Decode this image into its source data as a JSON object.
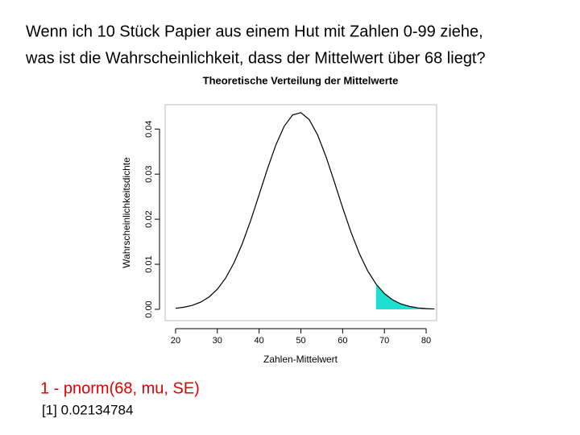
{
  "heading": [
    "Wenn ich 10 Stück Papier aus einem Hut mit Zahlen 0-99 ziehe,",
    "was ist die Wahrscheinlichkeit, dass der Mittelwert über 68 liegt?"
  ],
  "chart_data": {
    "type": "line",
    "title": "Theoretische Verteilung der Mittelwerte",
    "x_label": "Zahlen-Mittelwert",
    "y_label": "Wahrscheinlichkeitsdichte",
    "x": [
      20,
      22,
      24,
      26,
      28,
      30,
      32,
      34,
      36,
      38,
      40,
      42,
      44,
      46,
      48,
      50,
      52,
      54,
      56,
      58,
      60,
      62,
      64,
      66,
      68,
      70,
      72,
      74,
      76,
      78,
      80,
      82
    ],
    "values": [
      0.00024,
      0.00047,
      0.00088,
      0.00159,
      0.00273,
      0.00446,
      0.00696,
      0.01034,
      0.01464,
      0.01977,
      0.02543,
      0.03119,
      0.03645,
      0.04061,
      0.04312,
      0.04364,
      0.0421,
      0.03871,
      0.03392,
      0.02833,
      0.02255,
      0.01712,
      0.01238,
      0.00853,
      0.00561,
      0.00351,
      0.00209,
      0.00119,
      0.00065,
      0.00033,
      0.00016,
      8e-05
    ],
    "color": "#000000",
    "fill_color": "#1ee0d0",
    "shade_from": 68,
    "xlim": [
      17.5,
      82.5
    ],
    "xticks": [
      20,
      30,
      40,
      50,
      60,
      70,
      80
    ],
    "ylim": [
      -0.0025,
      0.0454
    ],
    "yticks": [
      {
        "value": 0,
        "label": "0.00"
      },
      0.01,
      0.02,
      0.03,
      0.04
    ]
  },
  "code": "1 - pnorm(68, mu, SE)",
  "output": "[1] 0.02134784"
}
